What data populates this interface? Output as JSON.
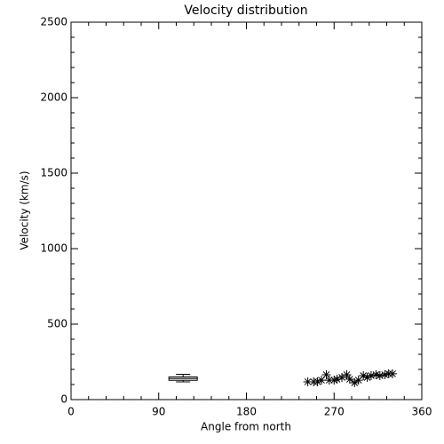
{
  "chart_data": {
    "type": "scatter",
    "title": "Velocity distribution",
    "x_label": "Angle from north",
    "y_label": "Velocity (km/s)",
    "xlim": [
      0,
      360
    ],
    "xticks": [
      0,
      90,
      180,
      270,
      360
    ],
    "xminorticks": [
      18,
      36,
      54,
      72,
      108,
      126,
      144,
      162,
      198,
      216,
      234,
      252,
      288,
      306,
      324,
      342
    ],
    "ylim": [
      0,
      2500
    ],
    "yticks": [
      0,
      500,
      1000,
      1500,
      2000,
      2500
    ],
    "yminorticks": [
      100,
      200,
      300,
      400,
      600,
      700,
      800,
      900,
      1100,
      1200,
      1300,
      1400,
      1600,
      1700,
      1800,
      1900,
      2100,
      2200,
      2300,
      2400
    ],
    "color": "#000000",
    "x": [
      243,
      249,
      253,
      257,
      262,
      265,
      270,
      273,
      278,
      283,
      286,
      291,
      295,
      300,
      304,
      308,
      313,
      317,
      322,
      326,
      330
    ],
    "values": [
      118,
      118,
      118,
      129,
      165,
      129,
      129,
      135,
      147,
      165,
      135,
      112,
      129,
      159,
      147,
      159,
      165,
      159,
      165,
      171,
      171
    ],
    "box": {
      "x": 115,
      "low": 118,
      "q1": 128,
      "median": 140,
      "q3": 150,
      "high": 168
    }
  }
}
